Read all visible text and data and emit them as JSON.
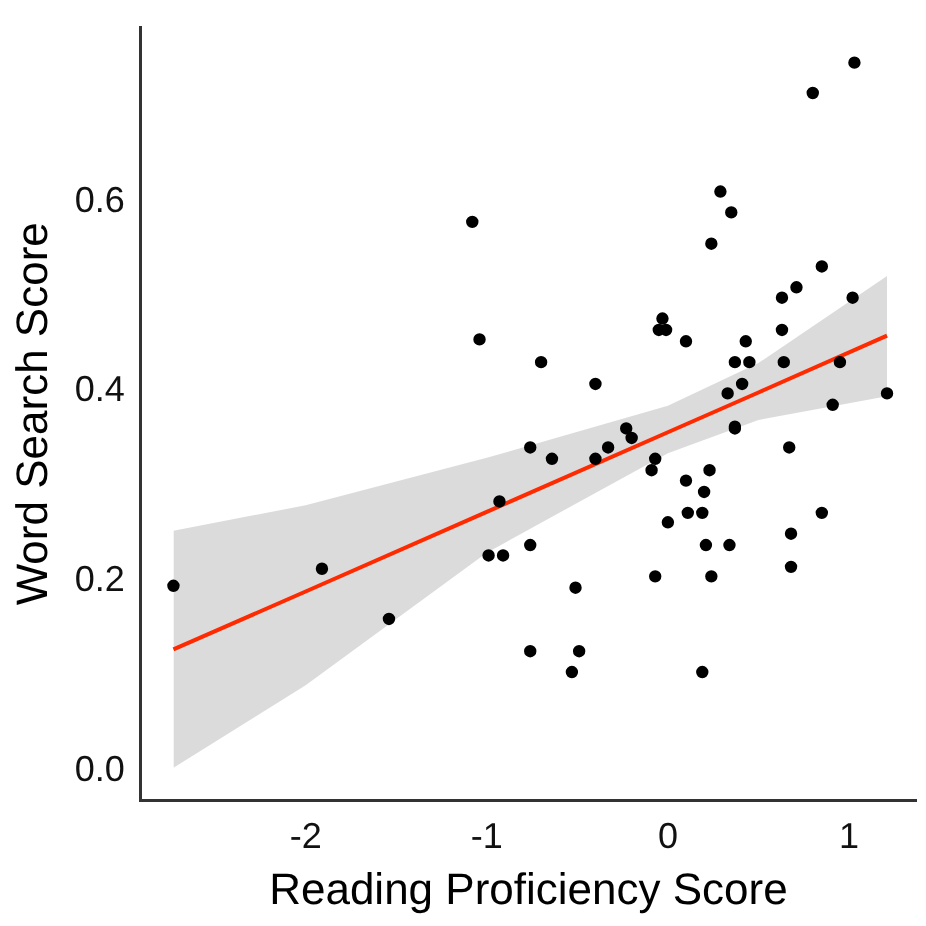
{
  "chart_data": {
    "type": "scatter",
    "xlabel": "Reading Proficiency Score",
    "ylabel": "Word Search Score",
    "xlim": [
      -2.91,
      1.37
    ],
    "ylim": [
      -0.031,
      0.784
    ],
    "xticks": [
      -2,
      -1,
      0,
      1
    ],
    "yticks": [
      {
        "value": 0,
        "label": "0.0"
      },
      {
        "value": 0.2,
        "label": "0.2"
      },
      {
        "value": 0.4,
        "label": "0.4"
      },
      {
        "value": 0.6,
        "label": "0.6"
      }
    ],
    "grid": false,
    "legend": false,
    "marker": "circle",
    "series": [
      {
        "type": "scatter",
        "color": "#000000",
        "x": [
          -2.73,
          -1.91,
          -1.54,
          -1.08,
          -1.04,
          -0.99,
          -0.91,
          -0.93,
          -0.76,
          -0.76,
          -0.76,
          -0.7,
          -0.64,
          -0.51,
          -0.53,
          -0.49,
          -0.4,
          -0.4,
          -0.33,
          -0.23,
          -0.2,
          -0.09,
          -0.07,
          -0.07,
          -0.05,
          -0.03,
          -0.01,
          0.0,
          0.1,
          0.1,
          0.11,
          0.19,
          0.19,
          0.2,
          0.21,
          0.23,
          0.24,
          0.24,
          0.29,
          0.33,
          0.34,
          0.35,
          0.37,
          0.37,
          0.37,
          0.41,
          0.43,
          0.45,
          0.63,
          0.63,
          0.64,
          0.67,
          0.68,
          0.68,
          0.71,
          0.8,
          0.85,
          0.85,
          0.91,
          0.95,
          1.02,
          1.03,
          1.21
        ],
        "values": [
          0.195,
          0.213,
          0.16,
          0.579,
          0.455,
          0.227,
          0.227,
          0.284,
          0.341,
          0.238,
          0.126,
          0.431,
          0.329,
          0.193,
          0.104,
          0.126,
          0.329,
          0.408,
          0.341,
          0.361,
          0.351,
          0.317,
          0.329,
          0.205,
          0.465,
          0.477,
          0.465,
          0.262,
          0.306,
          0.453,
          0.272,
          0.272,
          0.104,
          0.294,
          0.238,
          0.317,
          0.205,
          0.556,
          0.611,
          0.398,
          0.238,
          0.589,
          0.431,
          0.363,
          0.361,
          0.408,
          0.453,
          0.431,
          0.499,
          0.465,
          0.431,
          0.341,
          0.25,
          0.215,
          0.51,
          0.715,
          0.532,
          0.272,
          0.386,
          0.431,
          0.499,
          0.747,
          0.398
        ]
      },
      {
        "type": "line",
        "color": "#ff2a00",
        "marker": "none",
        "x": [
          -2.73,
          -2,
          -1,
          0,
          0.5,
          1.21
        ],
        "values": [
          0.128,
          0.189,
          0.273,
          0.357,
          0.399,
          0.459
        ],
        "lower": [
          0.003,
          0.09,
          0.23,
          0.335,
          0.37,
          0.395
        ],
        "upper": [
          0.253,
          0.28,
          0.33,
          0.385,
          0.43,
          0.522
        ]
      }
    ]
  }
}
